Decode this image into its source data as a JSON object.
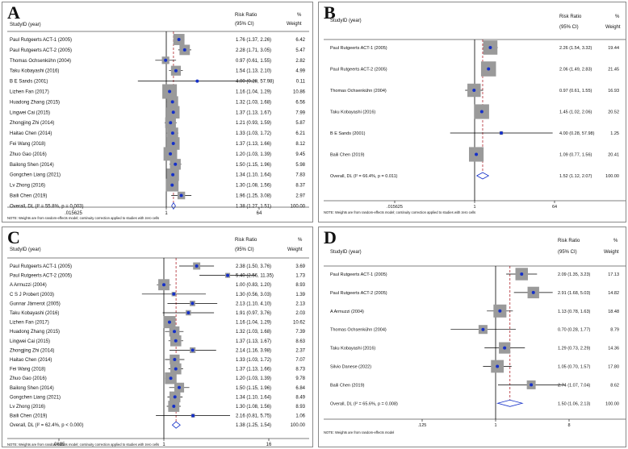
{
  "chart_data": [
    {
      "type": "forest",
      "panel_label": "A",
      "header": {
        "study": "StudyID (year)",
        "effect": "Risk Ratio",
        "ci": "(95% CI)",
        "pct": "%",
        "weight": "Weight"
      },
      "axis": {
        "scale": "log2",
        "ticks": [
          ".015625",
          "1",
          "64"
        ],
        "tick_values": [
          0.015625,
          1,
          64
        ],
        "range": [
          0.015625,
          64
        ]
      },
      "studies": [
        {
          "label": "Paul Rutgeerts  ACT-1  (2005)",
          "rr": 1.76,
          "lo": 1.37,
          "hi": 2.26,
          "text": "1.76 (1.37, 2.26)",
          "weight": "6.42"
        },
        {
          "label": "Paul Rutgeerts  ACT-2  (2005)",
          "rr": 2.28,
          "lo": 1.71,
          "hi": 3.05,
          "text": "2.28 (1.71, 3.05)",
          "weight": "5.47"
        },
        {
          "label": "Thomas Ochsenkühn (2004)",
          "rr": 0.97,
          "lo": 0.61,
          "hi": 1.55,
          "text": "0.97 (0.61, 1.55)",
          "weight": "2.82"
        },
        {
          "label": "Taku Kobayashi (2016)",
          "rr": 1.54,
          "lo": 1.13,
          "hi": 2.1,
          "text": "1.54 (1.13, 2.10)",
          "weight": "4.99"
        },
        {
          "label": "B E Sands  (2001)",
          "rr": 4.0,
          "lo": 0.28,
          "hi": 57.98,
          "text": "4.00 (0.28, 57.98)",
          "weight": "0.11"
        },
        {
          "label": "Lizhen Fan (2017)",
          "rr": 1.16,
          "lo": 1.04,
          "hi": 1.29,
          "text": "1.16 (1.04, 1.29)",
          "weight": "10.86"
        },
        {
          "label": "Huadong Zhang  (2015)",
          "rr": 1.32,
          "lo": 1.03,
          "hi": 1.68,
          "text": "1.32 (1.03, 1.68)",
          "weight": "6.56"
        },
        {
          "label": "Lingwei Cai  (2015)",
          "rr": 1.37,
          "lo": 1.13,
          "hi": 1.67,
          "text": "1.37 (1.13, 1.67)",
          "weight": "7.99"
        },
        {
          "label": "Zhongjing Zhi  (2014)",
          "rr": 1.21,
          "lo": 0.93,
          "hi": 1.59,
          "text": "1.21 (0.93, 1.59)",
          "weight": "5.87"
        },
        {
          "label": "Haitao Chen (2014)",
          "rr": 1.33,
          "lo": 1.03,
          "hi": 1.72,
          "text": "1.33 (1.03, 1.72)",
          "weight": "6.21"
        },
        {
          "label": "Fei Wang (2018)",
          "rr": 1.37,
          "lo": 1.13,
          "hi": 1.66,
          "text": "1.37 (1.13, 1.66)",
          "weight": "8.12"
        },
        {
          "label": "Zhuo Gao (2016)",
          "rr": 1.2,
          "lo": 1.03,
          "hi": 1.39,
          "text": "1.20 (1.03, 1.39)",
          "weight": "9.45"
        },
        {
          "label": "Bailong Shen (2014)",
          "rr": 1.5,
          "lo": 1.15,
          "hi": 1.96,
          "text": "1.50 (1.15, 1.96)",
          "weight": "5.98"
        },
        {
          "label": "Gongchen Liang  (2021)",
          "rr": 1.34,
          "lo": 1.1,
          "hi": 1.64,
          "text": "1.34 (1.10, 1.64)",
          "weight": "7.83"
        },
        {
          "label": "Lv Zhong  (2016)",
          "rr": 1.3,
          "lo": 1.08,
          "hi": 1.56,
          "text": "1.30 (1.08, 1.56)",
          "weight": "8.37"
        },
        {
          "label": "Baili Chen  (2019)",
          "rr": 1.96,
          "lo": 1.25,
          "hi": 3.08,
          "text": "1.96 (1.25, 3.08)",
          "weight": "2.97"
        }
      ],
      "overall": {
        "label": "Overall, DL (I² = 55.8%, p = 0.003)",
        "rr": 1.38,
        "lo": 1.27,
        "hi": 1.51,
        "text": "1.38 (1.27, 1.51)",
        "weight": "100.00"
      },
      "note": "NOTE: Weights are from random-effects model; continuity correction applied to studies with zero cells"
    },
    {
      "type": "forest",
      "panel_label": "B",
      "header": {
        "study": "StudyID (year)",
        "effect": "Risk Ratio",
        "ci": "(95% CI)",
        "pct": "%",
        "weight": "Weight"
      },
      "axis": {
        "scale": "log2",
        "ticks": [
          ".015625",
          "1",
          "64"
        ],
        "tick_values": [
          0.015625,
          1,
          64
        ],
        "range": [
          0.015625,
          64
        ]
      },
      "studies": [
        {
          "label": "Paul Rutgeerts  ACT-1  (2005)",
          "rr": 2.26,
          "lo": 1.54,
          "hi": 3.32,
          "text": "2.26 (1.54, 3.32)",
          "weight": "19.44"
        },
        {
          "label": "Paul Rutgeerts  ACT-2  (2005)",
          "rr": 2.06,
          "lo": 1.49,
          "hi": 2.83,
          "text": "2.06 (1.49, 2.83)",
          "weight": "21.45"
        },
        {
          "label": "Thomas Ochsenkühn (2004)",
          "rr": 0.97,
          "lo": 0.61,
          "hi": 1.55,
          "text": "0.97 (0.61, 1.55)",
          "weight": "16.93"
        },
        {
          "label": "Taku Kobayashi (2016)",
          "rr": 1.45,
          "lo": 1.02,
          "hi": 2.06,
          "text": "1.45 (1.02, 2.06)",
          "weight": "20.52"
        },
        {
          "label": "B E Sands  (2001)",
          "rr": 4.0,
          "lo": 0.28,
          "hi": 57.98,
          "text": "4.00 (0.28, 57.98)",
          "weight": "1.25"
        },
        {
          "label": "Baili Chen  (2019)",
          "rr": 1.09,
          "lo": 0.77,
          "hi": 1.56,
          "text": "1.09 (0.77, 1.56)",
          "weight": "20.41"
        }
      ],
      "overall": {
        "label": "Overall, DL (I² = 66.4%, p = 0.011)",
        "rr": 1.52,
        "lo": 1.12,
        "hi": 2.07,
        "text": "1.52 (1.12, 2.07)",
        "weight": "100.00"
      },
      "note": "NOTE: Weights are from random-effects model; continuity correction applied to studies with zero cells"
    },
    {
      "type": "forest",
      "panel_label": "C",
      "header": {
        "study": "StudyID (year)",
        "effect": "Risk Ratio",
        "ci": "(95% CI)",
        "pct": "%",
        "weight": "Weight"
      },
      "axis": {
        "scale": "log2",
        "ticks": [
          ".0625",
          "1",
          "16"
        ],
        "tick_values": [
          0.0625,
          1,
          16
        ],
        "range": [
          0.0625,
          16
        ]
      },
      "studies": [
        {
          "label": "Paul Rutgeerts  ACT-1  (2005)",
          "rr": 2.38,
          "lo": 1.5,
          "hi": 3.76,
          "text": "2.38 (1.50, 3.76)",
          "weight": "3.69"
        },
        {
          "label": "Paul Rutgeerts  ACT-2  (2005)",
          "rr": 5.4,
          "lo": 2.56,
          "hi": 11.35,
          "text": "5.40 (2.56, 11.35)",
          "weight": "1.73"
        },
        {
          "label": "A Armuzzi  (2004)",
          "rr": 1.0,
          "lo": 0.83,
          "hi": 1.2,
          "text": "1.00 (0.83, 1.20)",
          "weight": "8.93"
        },
        {
          "label": "C S J Probert  (2003)",
          "rr": 1.3,
          "lo": 0.56,
          "hi": 3.03,
          "text": "1.30 (0.56, 3.03)",
          "weight": "1.39"
        },
        {
          "label": "Gunnar Järnerot  (2005)",
          "rr": 2.13,
          "lo": 1.1,
          "hi": 4.1,
          "text": "2.13 (1.10, 4.10)",
          "weight": "2.13"
        },
        {
          "label": "Taku Kobayashi (2016)",
          "rr": 1.91,
          "lo": 0.97,
          "hi": 3.76,
          "text": "1.91 (0.97, 3.76)",
          "weight": "2.03"
        },
        {
          "label": "Lizhen Fan (2017)",
          "rr": 1.16,
          "lo": 1.04,
          "hi": 1.29,
          "text": "1.16 (1.04, 1.29)",
          "weight": "10.62"
        },
        {
          "label": "Huadong Zhang  (2015)",
          "rr": 1.32,
          "lo": 1.03,
          "hi": 1.68,
          "text": "1.32 (1.03, 1.68)",
          "weight": "7.39"
        },
        {
          "label": "Lingwei Cai  (2015)",
          "rr": 1.37,
          "lo": 1.13,
          "hi": 1.67,
          "text": "1.37 (1.13, 1.67)",
          "weight": "8.63"
        },
        {
          "label": "Zhongjing Zhi  (2014)",
          "rr": 2.14,
          "lo": 1.16,
          "hi": 3.98,
          "text": "2.14 (1.16, 3.98)",
          "weight": "2.37"
        },
        {
          "label": "Haitao Chen (2014)",
          "rr": 1.33,
          "lo": 1.03,
          "hi": 1.72,
          "text": "1.33 (1.03, 1.72)",
          "weight": "7.07"
        },
        {
          "label": "Fei Wang (2018)",
          "rr": 1.37,
          "lo": 1.13,
          "hi": 1.66,
          "text": "1.37 (1.13, 1.66)",
          "weight": "8.73"
        },
        {
          "label": "Zhuo Gao (2016)",
          "rr": 1.2,
          "lo": 1.03,
          "hi": 1.39,
          "text": "1.20 (1.03, 1.39)",
          "weight": "9.78"
        },
        {
          "label": "Bailong Shen (2014)",
          "rr": 1.5,
          "lo": 1.15,
          "hi": 1.96,
          "text": "1.50 (1.15, 1.96)",
          "weight": "6.84"
        },
        {
          "label": "Gongchen Liang  (2021)",
          "rr": 1.34,
          "lo": 1.1,
          "hi": 1.64,
          "text": "1.34 (1.10, 1.64)",
          "weight": "8.49"
        },
        {
          "label": "Lv Zhong  (2016)",
          "rr": 1.3,
          "lo": 1.08,
          "hi": 1.56,
          "text": "1.30 (1.08, 1.56)",
          "weight": "8.93"
        },
        {
          "label": "Baili Chen  (2019)",
          "rr": 2.16,
          "lo": 0.81,
          "hi": 5.75,
          "text": "2.16 (0.81, 5.75)",
          "weight": "1.06"
        }
      ],
      "overall": {
        "label": "Overall, DL (I² = 62.4%, p < 0.000)",
        "rr": 1.38,
        "lo": 1.25,
        "hi": 1.54,
        "text": "1.38 (1.25, 1.54)",
        "weight": "100.00"
      },
      "note": "NOTE: Weights are from random-effects model; continuity correction applied to studies with zero cells"
    },
    {
      "type": "forest",
      "panel_label": "D",
      "header": {
        "study": "StudyID (year)",
        "effect": "Risk Ratio",
        "ci": "(95% CI)",
        "pct": "%",
        "weight": "Weight"
      },
      "axis": {
        "scale": "log2",
        "ticks": [
          ".125",
          "1",
          "8"
        ],
        "tick_values": [
          0.125,
          1,
          8
        ],
        "range": [
          0.125,
          8
        ]
      },
      "studies": [
        {
          "label": "Paul Rutgeerts  ACT-1  (2005)",
          "rr": 2.09,
          "lo": 1.35,
          "hi": 3.23,
          "text": "2.09 (1.35, 3.23)",
          "weight": "17.13"
        },
        {
          "label": "Paul Rutgeerts  ACT-2  (2005)",
          "rr": 2.91,
          "lo": 1.68,
          "hi": 5.03,
          "text": "2.91 (1.68, 5.03)",
          "weight": "14.82"
        },
        {
          "label": "A Armuzzi  (2004)",
          "rr": 1.13,
          "lo": 0.78,
          "hi": 1.63,
          "text": "1.13 (0.78, 1.63)",
          "weight": "18.48"
        },
        {
          "label": "Thomas Ochsenkühn (2004)",
          "rr": 0.7,
          "lo": 0.28,
          "hi": 1.77,
          "text": "0.70 (0.28, 1.77)",
          "weight": "8.79"
        },
        {
          "label": "Taku Kobayashi (2016)",
          "rr": 1.29,
          "lo": 0.73,
          "hi": 2.29,
          "text": "1.29 (0.73, 2.29)",
          "weight": "14.36"
        },
        {
          "label": "Silvio Danese  (2022)",
          "rr": 1.05,
          "lo": 0.7,
          "hi": 1.57,
          "text": "1.05 (0.70, 1.57)",
          "weight": "17.80"
        },
        {
          "label": "Baili Chen  (2019)",
          "rr": 2.74,
          "lo": 1.07,
          "hi": 7.04,
          "text": "2.74 (1.07, 7.04)",
          "weight": "8.62"
        }
      ],
      "overall": {
        "label": "Overall, DL (I² = 65.6%, p = 0.008)",
        "rr": 1.5,
        "lo": 1.06,
        "hi": 2.13,
        "text": "1.50 (1.06, 2.13)",
        "weight": "100.00"
      },
      "note": "NOTE: Weights are from random-effects model"
    }
  ]
}
